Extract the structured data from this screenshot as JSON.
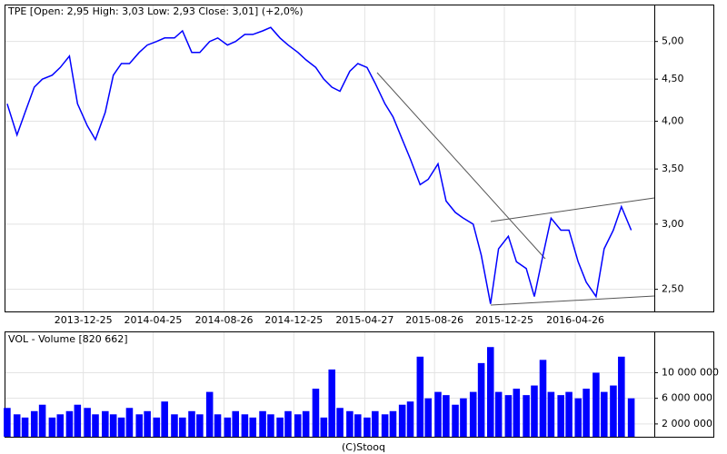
{
  "chart_data": [
    {
      "type": "line",
      "title": "TPE [Open: 2,95  High: 3,03  Low: 2,93  Close: 3,01] (+2,0%)",
      "x": [
        "2013-08-15",
        "2013-09-01",
        "2013-09-15",
        "2013-10-01",
        "2013-10-15",
        "2013-11-01",
        "2013-11-15",
        "2013-12-01",
        "2013-12-15",
        "2014-01-01",
        "2014-01-15",
        "2014-02-01",
        "2014-02-15",
        "2014-03-01",
        "2014-03-15",
        "2014-04-01",
        "2014-04-15",
        "2014-05-01",
        "2014-05-15",
        "2014-06-01",
        "2014-06-15",
        "2014-07-01",
        "2014-07-15",
        "2014-08-01",
        "2014-08-15",
        "2014-09-01",
        "2014-09-15",
        "2014-10-01",
        "2014-10-15",
        "2014-11-01",
        "2014-11-15",
        "2014-12-01",
        "2014-12-15",
        "2015-01-01",
        "2015-01-15",
        "2015-02-01",
        "2015-02-15",
        "2015-03-01",
        "2015-03-15",
        "2015-04-01",
        "2015-04-15",
        "2015-05-01",
        "2015-05-15",
        "2015-06-01",
        "2015-06-15",
        "2015-07-01",
        "2015-07-15",
        "2015-08-01",
        "2015-08-15",
        "2015-09-01",
        "2015-09-15",
        "2015-10-01",
        "2015-10-15",
        "2015-11-01",
        "2015-11-15",
        "2015-12-01",
        "2015-12-15",
        "2016-01-01",
        "2016-01-15",
        "2016-02-01",
        "2016-02-15",
        "2016-03-01",
        "2016-03-15",
        "2016-04-01",
        "2016-04-15",
        "2016-05-01",
        "2016-05-15",
        "2016-06-01",
        "2016-06-15",
        "2016-07-01",
        "2016-07-15",
        "2016-08-01"
      ],
      "values": [
        4.2,
        3.85,
        4.1,
        4.4,
        4.5,
        4.55,
        4.65,
        4.8,
        4.2,
        3.95,
        3.8,
        4.1,
        4.55,
        4.7,
        4.7,
        4.85,
        4.95,
        5.0,
        5.05,
        5.05,
        5.15,
        4.85,
        4.85,
        5.0,
        5.05,
        4.95,
        5.0,
        5.1,
        5.1,
        5.15,
        5.2,
        5.05,
        4.95,
        4.85,
        4.75,
        4.65,
        4.5,
        4.4,
        4.35,
        4.6,
        4.7,
        4.65,
        4.45,
        4.2,
        4.05,
        3.8,
        3.6,
        3.35,
        3.4,
        3.55,
        3.2,
        3.1,
        3.05,
        3.0,
        2.75,
        2.4,
        2.8,
        2.9,
        2.7,
        2.65,
        2.45,
        2.75,
        3.05,
        2.95,
        2.95,
        2.7,
        2.55,
        2.45,
        2.8,
        2.95,
        3.15,
        2.95
      ],
      "color": "#0000ff",
      "log_scale": true,
      "grid": true,
      "xlim": [
        "2013-08-12",
        "2016-09-10"
      ],
      "xticks": [
        "2013-12-25",
        "2014-04-25",
        "2014-08-26",
        "2014-12-25",
        "2015-04-27",
        "2015-08-26",
        "2015-12-25",
        "2016-04-26"
      ],
      "ylim": [
        2.35,
        5.53
      ],
      "yticks": [
        {
          "value": 2.5,
          "label": "2,50"
        },
        {
          "value": 3,
          "label": "3,00"
        },
        {
          "value": 3.5,
          "label": "3,50"
        },
        {
          "value": 4,
          "label": "4,00"
        },
        {
          "value": 4.5,
          "label": "4,50"
        },
        {
          "value": 5,
          "label": "5,00"
        }
      ]
    },
    {
      "type": "bar",
      "title": "VOL - Volume [820 662]",
      "x": [
        "2013-08-15",
        "2013-09-01",
        "2013-09-15",
        "2013-10-01",
        "2013-10-15",
        "2013-11-01",
        "2013-11-15",
        "2013-12-01",
        "2013-12-15",
        "2014-01-01",
        "2014-01-15",
        "2014-02-01",
        "2014-02-15",
        "2014-03-01",
        "2014-03-15",
        "2014-04-01",
        "2014-04-15",
        "2014-05-01",
        "2014-05-15",
        "2014-06-01",
        "2014-06-15",
        "2014-07-01",
        "2014-07-15",
        "2014-08-01",
        "2014-08-15",
        "2014-09-01",
        "2014-09-15",
        "2014-10-01",
        "2014-10-15",
        "2014-11-01",
        "2014-11-15",
        "2014-12-01",
        "2014-12-15",
        "2015-01-01",
        "2015-01-15",
        "2015-02-01",
        "2015-02-15",
        "2015-03-01",
        "2015-03-15",
        "2015-04-01",
        "2015-04-15",
        "2015-05-01",
        "2015-05-15",
        "2015-06-01",
        "2015-06-15",
        "2015-07-01",
        "2015-07-15",
        "2015-08-01",
        "2015-08-15",
        "2015-09-01",
        "2015-09-15",
        "2015-10-01",
        "2015-10-15",
        "2015-11-01",
        "2015-11-15",
        "2015-12-01",
        "2015-12-15",
        "2016-01-01",
        "2016-01-15",
        "2016-02-01",
        "2016-02-15",
        "2016-03-01",
        "2016-03-15",
        "2016-04-01",
        "2016-04-15",
        "2016-05-01",
        "2016-05-15",
        "2016-06-01",
        "2016-06-15",
        "2016-07-01",
        "2016-07-15",
        "2016-08-01"
      ],
      "values": [
        4500000,
        3500000,
        3000000,
        4000000,
        5000000,
        3000000,
        3500000,
        4000000,
        5000000,
        4500000,
        3500000,
        4000000,
        3500000,
        3000000,
        4500000,
        3500000,
        4000000,
        3000000,
        5500000,
        3500000,
        3000000,
        4000000,
        3500000,
        7000000,
        3500000,
        3000000,
        4000000,
        3500000,
        3000000,
        4000000,
        3500000,
        3000000,
        4000000,
        3500000,
        4000000,
        7500000,
        3000000,
        10500000,
        4500000,
        4000000,
        3500000,
        3000000,
        4000000,
        3500000,
        4000000,
        5000000,
        5500000,
        12500000,
        6000000,
        7000000,
        6500000,
        5000000,
        6000000,
        7000000,
        11500000,
        14000000,
        7000000,
        6500000,
        7500000,
        6500000,
        8000000,
        12000000,
        7000000,
        6500000,
        7000000,
        6000000,
        7500000,
        10000000,
        7000000,
        8000000,
        12500000,
        6000000
      ],
      "color": "#0000ff",
      "grid": true,
      "xlim": [
        "2013-08-12",
        "2016-09-10"
      ],
      "xticks": [
        "2013-12-25",
        "2014-04-25",
        "2014-08-26",
        "2014-12-25",
        "2015-04-27",
        "2015-08-26",
        "2015-12-25",
        "2016-04-26"
      ],
      "ylim": [
        0,
        16300000
      ],
      "yticks": [
        {
          "value": 2000000,
          "label": "2 000 000"
        },
        {
          "value": 6000000,
          "label": "6 000 000"
        },
        {
          "value": 10000000,
          "label": "10 000 000"
        }
      ]
    }
  ],
  "footer": "(C)Stooq"
}
